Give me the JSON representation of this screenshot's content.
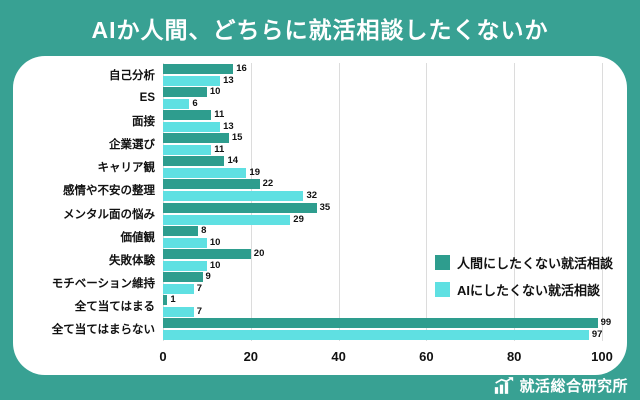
{
  "title": "AIか人間、どちらに就活相談したくないか",
  "colors": {
    "background": "#38A193",
    "card": "#FFFFFF",
    "grid": "#DCDCDC",
    "human_series": "#2E9D8E",
    "ai_series": "#5FE0E2",
    "label_text": "#111111",
    "title_text": "#FFFFFF"
  },
  "chart_data": {
    "type": "bar",
    "orientation": "horizontal",
    "title": "AIか人間、どちらに就活相談したくないか",
    "categories": [
      "自己分析",
      "ES",
      "面接",
      "企業選び",
      "キャリア観",
      "感情や不安の整理",
      "メンタル面の悩み",
      "価値観",
      "失敗体験",
      "モチベーション維持",
      "全て当てはまる",
      "全て当てはまらない"
    ],
    "series": [
      {
        "name": "人間にしたくない就活相談",
        "color": "#2E9D8E",
        "values": [
          16,
          10,
          11,
          15,
          14,
          22,
          35,
          8,
          20,
          9,
          1,
          99
        ]
      },
      {
        "name": "AIにしたくない就活相談",
        "color": "#5FE0E2",
        "values": [
          13,
          6,
          13,
          11,
          19,
          32,
          29,
          10,
          10,
          7,
          7,
          97
        ]
      }
    ],
    "xlim": [
      0,
      100
    ],
    "xticks": [
      0,
      20,
      40,
      60,
      80,
      100
    ],
    "grid": true,
    "legend_position": "right-middle",
    "value_labels": true
  },
  "footer": {
    "brand": "就活総合研究所"
  }
}
